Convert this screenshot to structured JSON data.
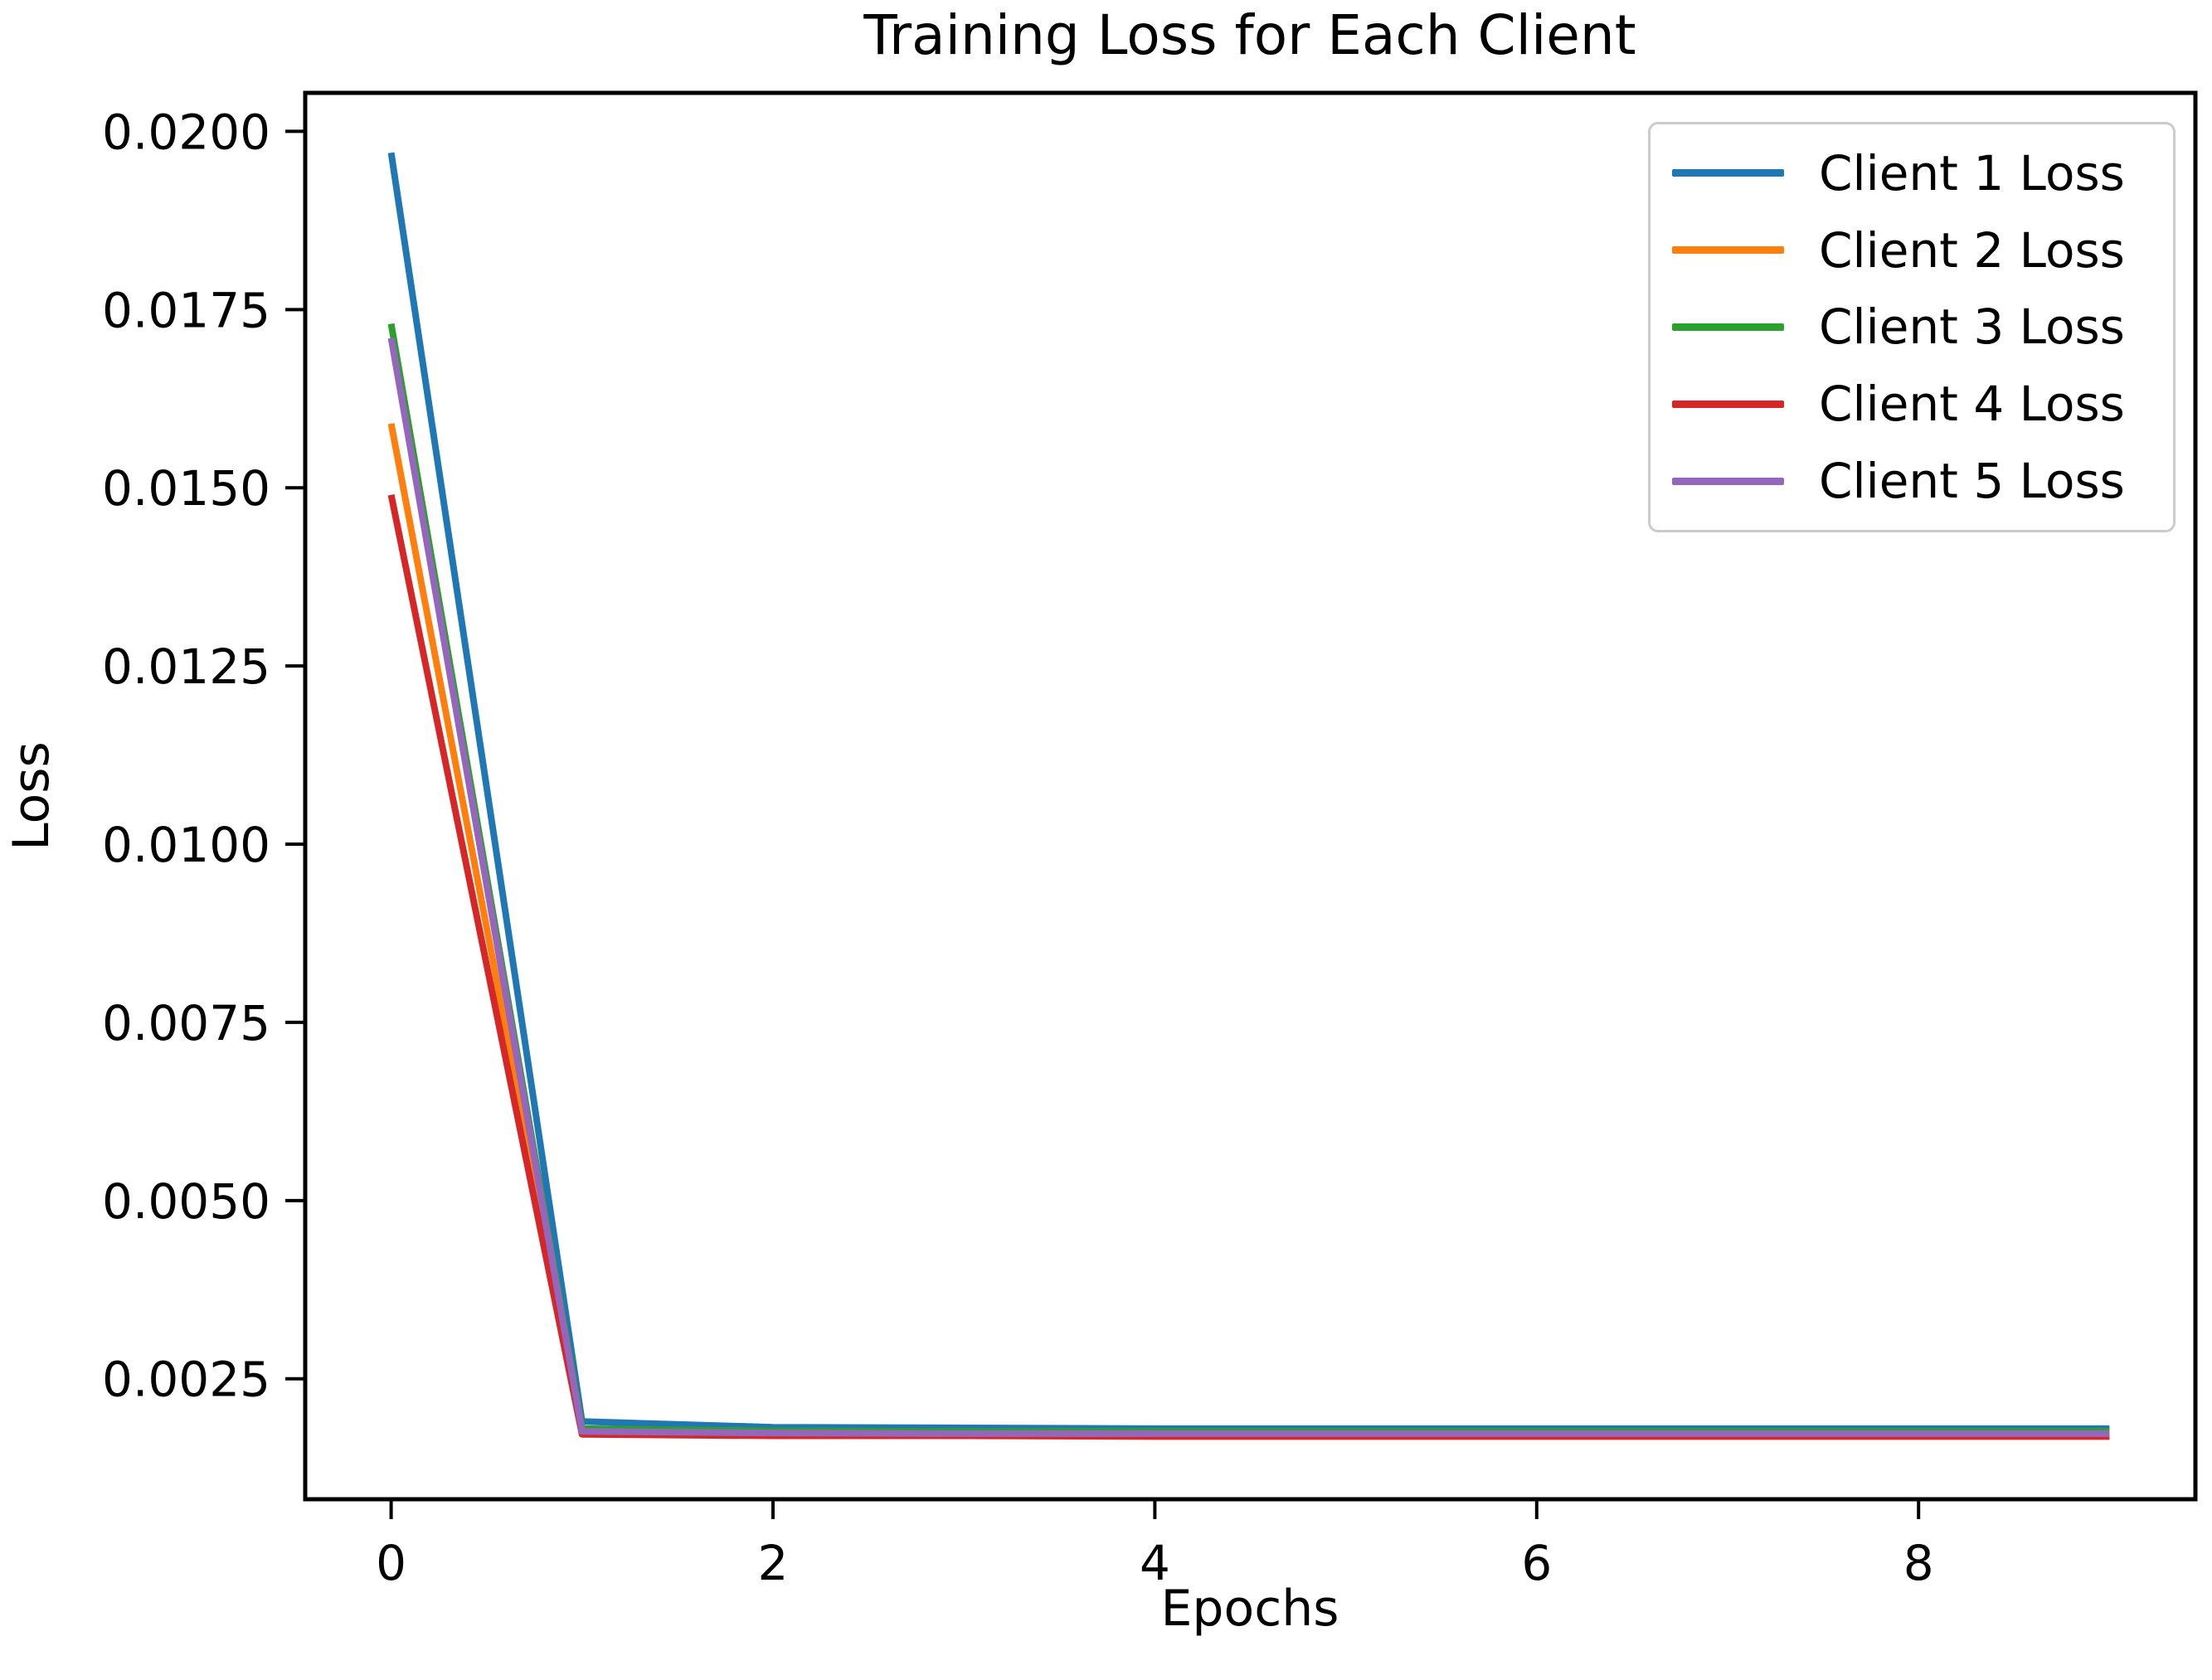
{
  "chart_data": {
    "type": "line",
    "title": "Training Loss for Each Client",
    "xlabel": "Epochs",
    "ylabel": "Loss",
    "grid": false,
    "legend_position": "upper right",
    "x": [
      0,
      1,
      2,
      3,
      4,
      5,
      6,
      7,
      8,
      9
    ],
    "xlim": [
      -0.45,
      9.45
    ],
    "ylim": [
      0.00081,
      0.02054
    ],
    "xticks": [
      {
        "value": 0,
        "label": "0"
      },
      {
        "value": 2,
        "label": "2"
      },
      {
        "value": 4,
        "label": "4"
      },
      {
        "value": 6,
        "label": "6"
      },
      {
        "value": 8,
        "label": "8"
      }
    ],
    "yticks": [
      {
        "value": 0.0025,
        "label": "0.0025"
      },
      {
        "value": 0.005,
        "label": "0.0050"
      },
      {
        "value": 0.0075,
        "label": "0.0075"
      },
      {
        "value": 0.01,
        "label": "0.0100"
      },
      {
        "value": 0.0125,
        "label": "0.0125"
      },
      {
        "value": 0.015,
        "label": "0.0150"
      },
      {
        "value": 0.0175,
        "label": "0.0175"
      },
      {
        "value": 0.02,
        "label": "0.0200"
      }
    ],
    "series": [
      {
        "name": "Client 1 Loss",
        "color": "#1f77b4",
        "values": [
          0.0197,
          0.0019,
          0.00182,
          0.00181,
          0.0018,
          0.0018,
          0.0018,
          0.0018,
          0.0018,
          0.0018
        ]
      },
      {
        "name": "Client 2 Loss",
        "color": "#ff7f0e",
        "values": [
          0.0159,
          0.00177,
          0.00175,
          0.00174,
          0.00174,
          0.00174,
          0.00174,
          0.00174,
          0.00174,
          0.00174
        ]
      },
      {
        "name": "Client 3 Loss",
        "color": "#2ca02c",
        "values": [
          0.0173,
          0.0018,
          0.00177,
          0.00176,
          0.00176,
          0.00176,
          0.00176,
          0.00176,
          0.00176,
          0.00176
        ]
      },
      {
        "name": "Client 4 Loss",
        "color": "#d62728",
        "values": [
          0.0149,
          0.00172,
          0.0017,
          0.0017,
          0.00169,
          0.00169,
          0.00169,
          0.00169,
          0.00169,
          0.00169
        ]
      },
      {
        "name": "Client 5 Loss",
        "color": "#9467bd",
        "values": [
          0.0171,
          0.00176,
          0.00174,
          0.00173,
          0.00173,
          0.00173,
          0.00173,
          0.00173,
          0.00173,
          0.00173
        ]
      }
    ]
  }
}
